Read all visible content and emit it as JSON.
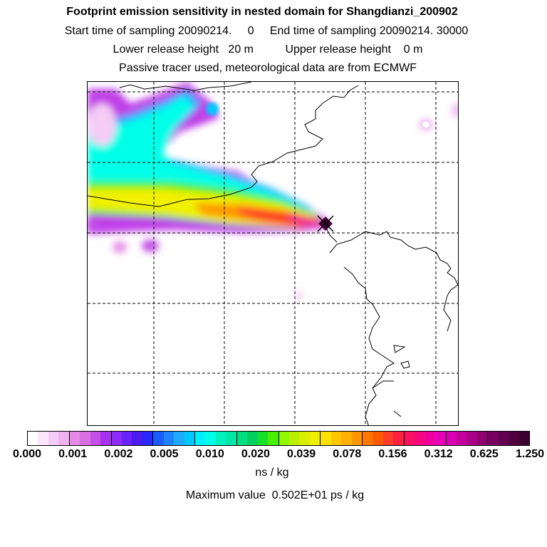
{
  "header": {
    "title": "Footprint emission sensitivity in nested domain for Shangdianzi_200902",
    "sampling_line": "Start time of sampling 20090214.     0     End time of sampling 20090214. 30000",
    "release_line": "Lower release height   20 m          Upper release height    0 m",
    "info_line": "Passive tracer used, meteorological data are from ECMWF"
  },
  "map": {
    "receptor_marker": "receptor-x-marker",
    "grid_style": "dashed"
  },
  "colorbar": {
    "ticks": [
      "0.000",
      "0.001",
      "0.002",
      "0.005",
      "0.010",
      "0.020",
      "0.039",
      "0.078",
      "0.156",
      "0.312",
      "0.625",
      "1.250"
    ],
    "colors": [
      "#ffffff",
      "#fbe6fb",
      "#f5ccf5",
      "#eeb3ee",
      "#e58be5",
      "#d870e4",
      "#c550e8",
      "#a830f0",
      "#8c2cf8",
      "#6a22fa",
      "#4a1cf0",
      "#2a28ff",
      "#1a5cff",
      "#1f83ff",
      "#1ea8ff",
      "#00c8ff",
      "#00f0ff",
      "#00ffe8",
      "#00f0c0",
      "#00e8a8",
      "#00e080",
      "#00d060",
      "#14e028",
      "#48f000",
      "#90f800",
      "#b8f000",
      "#d8f000",
      "#f0f000",
      "#ffe000",
      "#ffc800",
      "#ffb000",
      "#ff9800",
      "#ff7800",
      "#ff5a00",
      "#ff3c28",
      "#ff2040",
      "#ff1060",
      "#f80880",
      "#f000a0",
      "#e800b8",
      "#d800b0",
      "#c4009c",
      "#aa0088",
      "#900070",
      "#780060",
      "#640050",
      "#500040",
      "#3c0030"
    ]
  },
  "units_label": "ns / kg",
  "max_value_label": "Maximum value  0.502E+01 ps / kg"
}
